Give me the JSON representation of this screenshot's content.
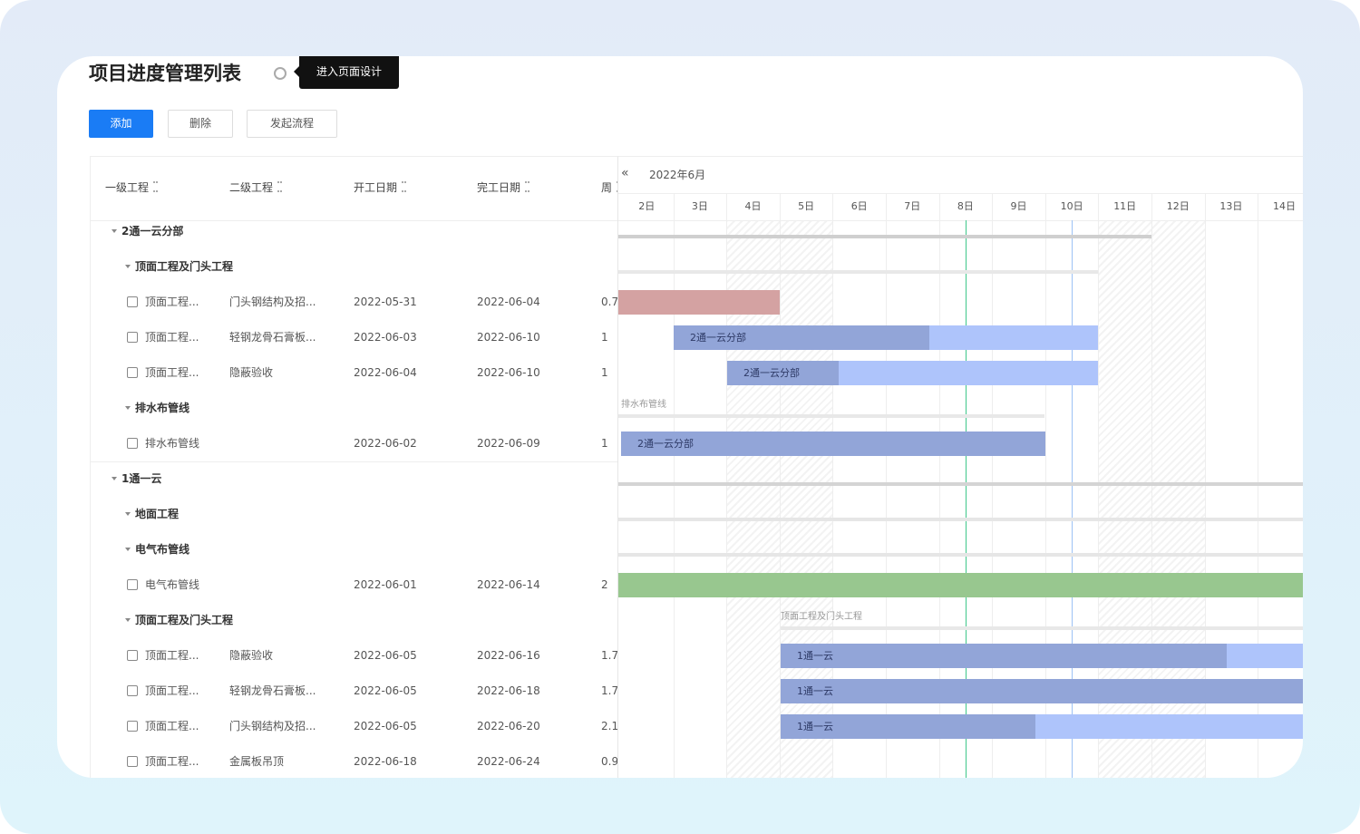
{
  "header": {
    "title": "项目进度管理列表",
    "tooltip": "进入页面设计"
  },
  "toolbar": {
    "buttons": [
      "添加",
      "删除",
      "发起流程"
    ]
  },
  "table": {
    "columns": [
      "一级工程",
      "二级工程",
      "开工日期",
      "完工日期",
      "周"
    ],
    "rows": [
      {
        "level": 0,
        "label": "2通一云分部"
      },
      {
        "level": 1,
        "label": "顶面工程及门头工程"
      },
      {
        "cells": [
          "顶面工程...",
          "门头钢结构及招...",
          "2022-05-31",
          "2022-06-04",
          "0.7"
        ]
      },
      {
        "cells": [
          "顶面工程...",
          "轻钢龙骨石膏板...",
          "2022-06-03",
          "2022-06-10",
          "1"
        ]
      },
      {
        "cells": [
          "顶面工程...",
          "隐蔽验收",
          "2022-06-04",
          "2022-06-10",
          "1"
        ]
      },
      {
        "level": 1,
        "label": "排水布管线"
      },
      {
        "cells": [
          "排水布管线",
          null,
          "2022-06-02",
          "2022-06-09",
          "1"
        ]
      },
      {
        "level": 0,
        "label": "1通一云"
      },
      {
        "level": 1,
        "label": "地面工程"
      },
      {
        "level": 1,
        "label": "电气布管线"
      },
      {
        "cells": [
          "电气布管线",
          null,
          "2022-06-01",
          "2022-06-14",
          "2"
        ]
      },
      {
        "level": 1,
        "label": "顶面工程及门头工程"
      },
      {
        "cells": [
          "顶面工程...",
          "隐蔽验收",
          "2022-06-05",
          "2022-06-16",
          "1.7"
        ]
      },
      {
        "cells": [
          "顶面工程...",
          "轻钢龙骨石膏板...",
          "2022-06-05",
          "2022-06-18",
          "1.7"
        ]
      },
      {
        "cells": [
          "顶面工程...",
          "门头钢结构及招...",
          "2022-06-05",
          "2022-06-20",
          "2.1"
        ]
      },
      {
        "cells": [
          "顶面工程...",
          "金属板吊顶",
          "2022-06-18",
          "2022-06-24",
          "0.9"
        ]
      }
    ]
  },
  "gantt": {
    "nav": "«",
    "month": "2022年6月",
    "days": [
      "2日",
      "3日",
      "4日",
      "5日",
      "6日",
      "7日",
      "8日",
      "9日",
      "10日",
      "11日",
      "12日",
      "13日",
      "14日"
    ],
    "captions": [
      {
        "row": 5,
        "text": "排水布管线"
      },
      {
        "row": 11,
        "text": "顶面工程及门头工程"
      }
    ],
    "bar_labels": [
      {
        "row": 3,
        "text": "2通一云分部"
      },
      {
        "row": 4,
        "text": "2通一云分部"
      },
      {
        "row": 6,
        "text": "2通一云分部"
      },
      {
        "row": 12,
        "text": "1通一云"
      },
      {
        "row": 13,
        "text": "1通一云"
      },
      {
        "row": 14,
        "text": "1通一云"
      }
    ]
  }
}
